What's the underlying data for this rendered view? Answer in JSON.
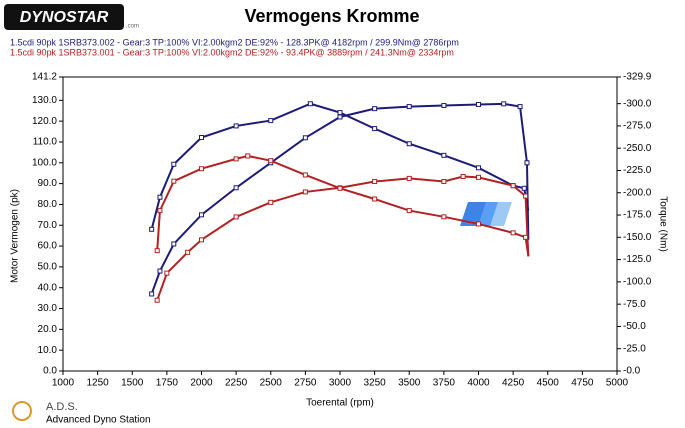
{
  "chart_data": {
    "type": "line",
    "title": "Vermogens Kromme",
    "logo": "DYNOSTAR",
    "logo_suffix": ".com",
    "footer_title": "A.D.S.",
    "footer_subtitle": "Advanced Dyno Station",
    "legend": [
      {
        "text": "1.5cdi 90pk 1SRB373.002 - Gear:3 TP:100% VI:2.00kgm2 DE:92%   - 128.3PK@ 4182rpm / 299.9Nm@ 2786rpm",
        "color": "#1c1c78"
      },
      {
        "text": "1.5cdi 90pk 1SRB373.001 - Gear:3 TP:100% VI:2.00kgm2 DE:92%   - 93.4PK@ 3889rpm / 241.3Nm@ 2334rpm",
        "color": "#b22222"
      }
    ],
    "x_label": "Toerental (rpm)",
    "y_label": "Motor Vermogen (pk)",
    "y2_label": "Torque (Nm)",
    "xlim": [
      1000,
      5000
    ],
    "xticks": [
      1000,
      1250,
      1500,
      1750,
      2000,
      2250,
      2500,
      2750,
      3000,
      3250,
      3500,
      3750,
      4000,
      4250,
      4500,
      4750,
      5000
    ],
    "ylim": [
      0,
      141.2
    ],
    "yticks": [
      141.2,
      {
        "value": 130,
        "label": "130.0"
      },
      {
        "value": 120,
        "label": "120.0"
      },
      {
        "value": 110,
        "label": "110.0"
      },
      {
        "value": 100,
        "label": "100.0"
      },
      {
        "value": 90,
        "label": "90.0"
      },
      {
        "value": 80,
        "label": "80.0"
      },
      {
        "value": 70,
        "label": "70.0"
      },
      {
        "value": 60,
        "label": "60.0"
      },
      {
        "value": 50,
        "label": "50.0"
      },
      {
        "value": 40,
        "label": "40.0"
      },
      {
        "value": 30,
        "label": "30.0"
      },
      {
        "value": 20,
        "label": "20.0"
      },
      {
        "value": 10,
        "label": "10.0"
      },
      {
        "value": 0,
        "label": "0.0"
      }
    ],
    "y2lim": [
      0,
      -329.9
    ],
    "y2ticks": [
      -329.9,
      {
        "value": -300,
        "label": "-300.0"
      },
      {
        "value": -275,
        "label": "-275.0"
      },
      {
        "value": -250,
        "label": "-250.0"
      },
      {
        "value": -225,
        "label": "-225.0"
      },
      {
        "value": -200,
        "label": "-200.0"
      },
      {
        "value": -175,
        "label": "-175.0"
      },
      {
        "value": -150,
        "label": "-150.0"
      },
      {
        "value": -125,
        "label": "-125.0"
      },
      {
        "value": -100,
        "label": "-100.0"
      },
      {
        "value": -75,
        "label": "-75.0"
      },
      {
        "value": -50,
        "label": "-50.0"
      },
      {
        "value": -25,
        "label": "-25.0"
      },
      {
        "value": 0,
        "label": "-0.0"
      }
    ],
    "series": [
      {
        "color": "#1c1c78",
        "axis": "y",
        "x": [
          1640,
          1700,
          1800,
          2000,
          2250,
          2500,
          2750,
          3000,
          3250,
          3500,
          3750,
          4000,
          4182,
          4300,
          4350,
          4360
        ],
        "values": [
          37,
          48,
          61,
          75,
          88,
          100,
          112,
          122,
          126,
          127,
          127.5,
          128,
          128.3,
          127,
          100,
          63
        ]
      },
      {
        "color": "#1c1c78",
        "axis": "y2",
        "x": [
          1640,
          1700,
          1800,
          2000,
          2250,
          2500,
          2786,
          3000,
          3250,
          3500,
          3750,
          4000,
          4250,
          4330,
          4360
        ],
        "values": [
          -159,
          -195,
          -232,
          -262,
          -275,
          -281,
          -299.9,
          -290,
          -272,
          -255,
          -242,
          -228,
          -208,
          -205,
          -180
        ]
      },
      {
        "color": "#b22222",
        "axis": "y",
        "x": [
          1680,
          1750,
          1900,
          2000,
          2250,
          2500,
          2750,
          3000,
          3250,
          3500,
          3750,
          3889,
          4000,
          4250,
          4340,
          4360
        ],
        "values": [
          34,
          47,
          57,
          63,
          74,
          81,
          86,
          88,
          91,
          92.5,
          91,
          93.4,
          93,
          89,
          84,
          55
        ]
      },
      {
        "color": "#b22222",
        "axis": "y2",
        "x": [
          1680,
          1700,
          1800,
          2000,
          2250,
          2334,
          2500,
          2750,
          3000,
          3250,
          3500,
          3750,
          4000,
          4250,
          4340,
          4360
        ],
        "values": [
          -135,
          -180,
          -213,
          -227,
          -238,
          -241.3,
          -236,
          -220,
          -205,
          -193,
          -180,
          -173,
          -165,
          -155,
          -150,
          -129
        ]
      }
    ]
  }
}
